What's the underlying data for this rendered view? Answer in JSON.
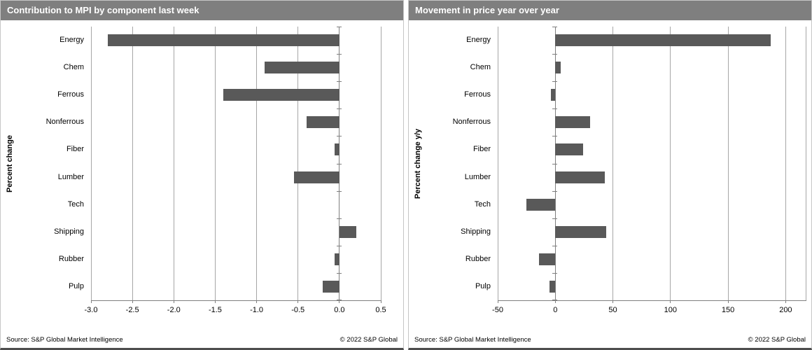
{
  "colors": {
    "title_bg": "#7f7f7f",
    "title_text": "#ffffff",
    "bar": "#595959",
    "gridline": "#a6a6a6",
    "axis": "#7f7f7f",
    "panel_border": "#c6c6c6",
    "bottom_border": "#4d4d4d"
  },
  "chart_data": [
    {
      "type": "bar",
      "orientation": "horizontal",
      "title": "Contribution to MPI by component last week",
      "ylabel": "Percent change",
      "source": "Source: S&P Global Market Intelligence",
      "copyright": "© 2022 S&P Global",
      "categories": [
        "Energy",
        "Chem",
        "Ferrous",
        "Nonferrous",
        "Fiber",
        "Lumber",
        "Tech",
        "Shipping",
        "Rubber",
        "Pulp"
      ],
      "values": [
        -2.8,
        -0.9,
        -1.4,
        -0.4,
        -0.06,
        -0.55,
        0.0,
        0.2,
        -0.06,
        -0.2
      ],
      "xlim": [
        -3.0,
        0.5
      ],
      "xticks": [
        -3.0,
        -2.5,
        -2.0,
        -1.5,
        -1.0,
        -0.5,
        0.0,
        0.5
      ],
      "xtick_labels": [
        "-3.0",
        "-2.5",
        "-2.0",
        "-1.5",
        "-1.0",
        "-0.5",
        "0.0",
        "0.5"
      ],
      "grid": true,
      "legend": false,
      "right_edge_line": false
    },
    {
      "type": "bar",
      "orientation": "horizontal",
      "title": "Movement in price year over year",
      "ylabel": "Percent change y/y",
      "source": "Source: S&P Global Market Intelligence",
      "copyright": "© 2022 S&P Global",
      "categories": [
        "Energy",
        "Chem",
        "Ferrous",
        "Nonferrous",
        "Fiber",
        "Lumber",
        "Tech",
        "Shipping",
        "Rubber",
        "Pulp"
      ],
      "values": [
        187,
        5,
        -4,
        30,
        24,
        43,
        -25,
        44,
        -14,
        -5
      ],
      "xlim": [
        -50,
        218
      ],
      "xticks": [
        -50,
        0,
        50,
        100,
        150,
        200
      ],
      "xtick_labels": [
        "-50",
        "0",
        "50",
        "100",
        "150",
        "200"
      ],
      "grid": true,
      "legend": false,
      "right_edge_line": true
    }
  ]
}
